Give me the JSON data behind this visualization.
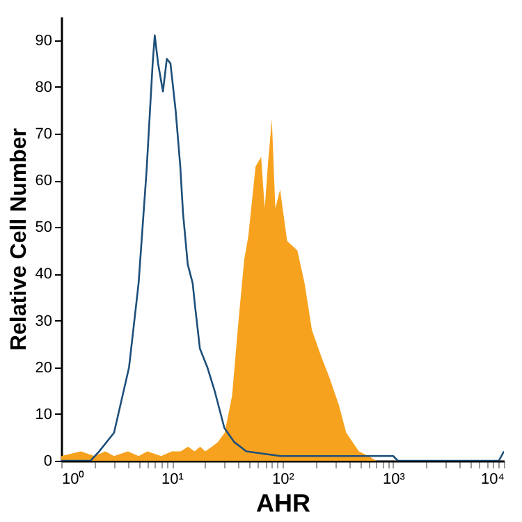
{
  "chart_data": {
    "type": "area",
    "xlabel": "AHR",
    "ylabel": "Relative Cell Number",
    "log": "x",
    "xlim": [
      1,
      10000
    ],
    "ylim": [
      0,
      95
    ],
    "yticks": [
      0,
      10,
      20,
      30,
      40,
      50,
      60,
      70,
      80,
      90
    ],
    "xticks": [
      {
        "value": 1,
        "label": "10⁰"
      },
      {
        "value": 2,
        "label": null
      },
      {
        "value": 3,
        "label": null
      },
      {
        "value": 4,
        "label": null
      },
      {
        "value": 5,
        "label": null
      },
      {
        "value": 6,
        "label": null
      },
      {
        "value": 7,
        "label": null
      },
      {
        "value": 8,
        "label": null
      },
      {
        "value": 9,
        "label": null
      },
      {
        "value": 10,
        "label": "10¹"
      },
      {
        "value": 20,
        "label": null
      },
      {
        "value": 30,
        "label": null
      },
      {
        "value": 40,
        "label": null
      },
      {
        "value": 50,
        "label": null
      },
      {
        "value": 60,
        "label": null
      },
      {
        "value": 70,
        "label": null
      },
      {
        "value": 80,
        "label": null
      },
      {
        "value": 90,
        "label": null
      },
      {
        "value": 100,
        "label": "10²"
      },
      {
        "value": 200,
        "label": null
      },
      {
        "value": 300,
        "label": null
      },
      {
        "value": 400,
        "label": null
      },
      {
        "value": 500,
        "label": null
      },
      {
        "value": 600,
        "label": null
      },
      {
        "value": 700,
        "label": null
      },
      {
        "value": 800,
        "label": null
      },
      {
        "value": 900,
        "label": null
      },
      {
        "value": 1000,
        "label": "10³"
      },
      {
        "value": 2000,
        "label": null
      },
      {
        "value": 3000,
        "label": null
      },
      {
        "value": 4000,
        "label": null
      },
      {
        "value": 5000,
        "label": null
      },
      {
        "value": 6000,
        "label": null
      },
      {
        "value": 7000,
        "label": null
      },
      {
        "value": 8000,
        "label": null
      },
      {
        "value": 9000,
        "label": null
      },
      {
        "value": 10000,
        "label": "10⁴"
      }
    ],
    "series": [
      {
        "color": "#f7a21e",
        "x": [
          1,
          1.5,
          2,
          2.5,
          3,
          4,
          5,
          6,
          8,
          10,
          12,
          14,
          16,
          18,
          20,
          23,
          26,
          30,
          35,
          40,
          45,
          49,
          57,
          64,
          69,
          74,
          80,
          86,
          95,
          110,
          136,
          158,
          184,
          226,
          263,
          322,
          376,
          489,
          600,
          700
        ],
        "values": [
          1,
          2,
          1,
          2,
          1,
          2,
          1,
          2,
          1,
          2,
          2,
          3,
          2,
          3,
          2,
          3,
          4,
          6,
          14,
          30,
          43,
          48,
          63,
          65,
          54,
          64,
          73,
          54,
          58,
          47,
          45,
          38,
          28,
          22,
          18,
          12,
          6,
          2,
          1,
          0
        ]
      },
      {
        "type": "line",
        "color": "#1d4f7a",
        "x": [
          1,
          1.84,
          2.2,
          3,
          4.1,
          5,
          5.9,
          6.7,
          7,
          7.5,
          8.3,
          9,
          9.7,
          10.8,
          11.9,
          12.6,
          13.9,
          15.4,
          16.2,
          17.9,
          20.9,
          24.3,
          29.8,
          36.6,
          47,
          96,
          300,
          1000,
          1100,
          9000,
          10000
        ],
        "values": [
          0,
          0,
          2,
          6,
          20,
          38,
          62,
          85,
          91,
          85,
          79,
          86,
          85,
          75,
          63,
          53,
          42,
          38,
          33,
          24,
          20,
          15,
          7,
          4,
          2,
          1,
          1,
          1,
          0,
          0,
          2
        ]
      }
    ]
  }
}
